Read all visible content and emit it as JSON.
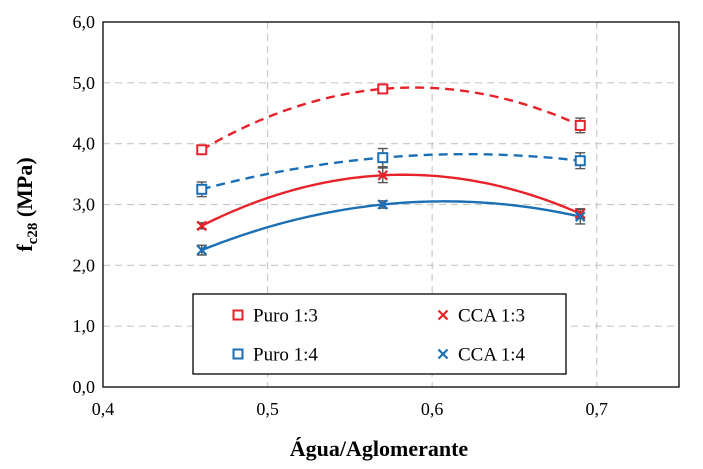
{
  "chart_data": {
    "type": "scatter",
    "xlabel": "Água/Aglomerante",
    "ylabel_main": "f",
    "ylabel_sub": "c28",
    "ylabel_unit": " (MPa)",
    "xlim": [
      0.4,
      0.75
    ],
    "ylim": [
      0,
      6
    ],
    "xticks": [
      {
        "value": 0.4,
        "label": "0,4"
      },
      {
        "value": 0.5,
        "label": "0,5"
      },
      {
        "value": 0.6,
        "label": "0,6"
      },
      {
        "value": 0.7,
        "label": "0,7"
      }
    ],
    "yticks": [
      {
        "value": 0,
        "label": "0,0"
      },
      {
        "value": 1,
        "label": "1,0"
      },
      {
        "value": 2,
        "label": "2,0"
      },
      {
        "value": 3,
        "label": "3,0"
      },
      {
        "value": 4,
        "label": "4,0"
      },
      {
        "value": 5,
        "label": "5,0"
      },
      {
        "value": 6,
        "label": "6,0"
      }
    ],
    "grid": true,
    "legend_position": "bottom-center",
    "series": [
      {
        "name": "Puro 1:3",
        "marker": "square",
        "color": "#e8222b",
        "trend": "dashed",
        "points": [
          {
            "x": 0.46,
            "y": 3.9,
            "err": 0.05
          },
          {
            "x": 0.57,
            "y": 4.9,
            "err": 0.05
          },
          {
            "x": 0.69,
            "y": 4.3,
            "err": 0.12
          }
        ]
      },
      {
        "name": "CCA 1:3",
        "marker": "cross",
        "color": "#e8222b",
        "trend": "solid",
        "points": [
          {
            "x": 0.46,
            "y": 2.65,
            "err": 0.05
          },
          {
            "x": 0.57,
            "y": 3.48,
            "err": 0.12
          },
          {
            "x": 0.69,
            "y": 2.85,
            "err": 0.08
          }
        ]
      },
      {
        "name": "Puro 1:4",
        "marker": "square",
        "color": "#1b6fb5",
        "trend": "dashed",
        "points": [
          {
            "x": 0.46,
            "y": 3.25,
            "err": 0.12
          },
          {
            "x": 0.57,
            "y": 3.77,
            "err": 0.15
          },
          {
            "x": 0.69,
            "y": 3.72,
            "err": 0.13
          }
        ]
      },
      {
        "name": "CCA 1:4",
        "marker": "cross",
        "color": "#1b6fb5",
        "trend": "solid",
        "points": [
          {
            "x": 0.46,
            "y": 2.25,
            "err": 0.08
          },
          {
            "x": 0.57,
            "y": 3.0,
            "err": 0.06
          },
          {
            "x": 0.69,
            "y": 2.8,
            "err": 0.12
          }
        ]
      }
    ]
  }
}
